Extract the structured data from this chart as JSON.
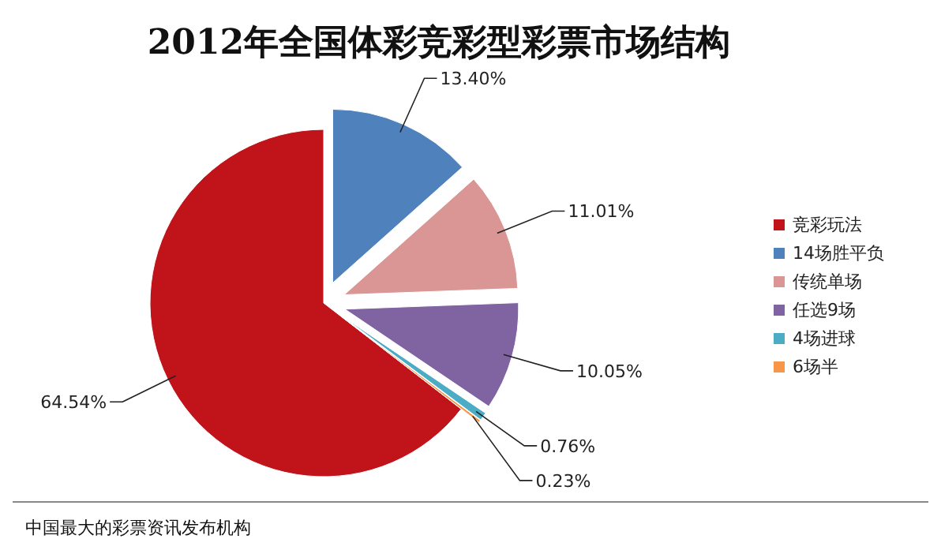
{
  "chart_data": {
    "type": "pie",
    "title": "2012年全国体彩竞彩型彩票市场结构",
    "categories": [
      "竞彩玩法",
      "14场胜平负",
      "传统单场",
      "任选9场",
      "4场进球",
      "6场半"
    ],
    "values": [
      64.54,
      13.4,
      11.01,
      10.05,
      0.76,
      0.23
    ],
    "colors": [
      "#c0141a",
      "#4f81bd",
      "#d99694",
      "#8064a2",
      "#4bacc6",
      "#f79646"
    ],
    "value_labels": [
      "64.54%",
      "13.40%",
      "11.01%",
      "10.05%",
      "0.76%",
      "0.23%"
    ],
    "legend": "right",
    "annotations": [
      "中国最大的彩票资讯发布机构"
    ]
  }
}
